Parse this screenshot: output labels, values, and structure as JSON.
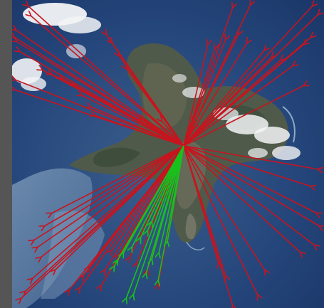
{
  "image": {
    "subject": "",
    "colors": {
      "frame": "#555555",
      "sea": "#1f3f73",
      "sea_light": "#6e8fb0",
      "land": "#4f5a4a",
      "cloud": "#f2f4f6",
      "arrow_primary": "#c8141e",
      "arrow_secondary": "#18c21c"
    }
  },
  "overlay": {
    "arrow_sets": [
      {
        "id": "red",
        "color": "#c8141e",
        "count": 70
      },
      {
        "id": "green",
        "color": "#18c21c",
        "count": 14
      }
    ]
  }
}
